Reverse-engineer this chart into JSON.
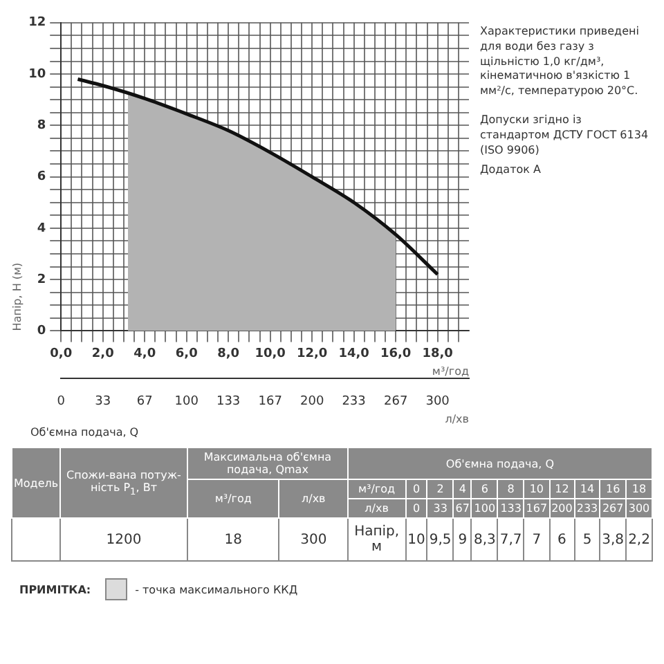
{
  "chart_data": {
    "type": "line",
    "series": [
      {
        "type": "area",
        "color": "#b3b3b3",
        "x": [
          3.2,
          4,
          6,
          8,
          10,
          12,
          14,
          16
        ],
        "values": [
          9.2,
          9.05,
          8.45,
          7.8,
          6.95,
          6.0,
          5.0,
          3.75
        ]
      },
      {
        "color": "#111111",
        "x": [
          0.8,
          2,
          4,
          6,
          8,
          10,
          12,
          14,
          16,
          18
        ],
        "values": [
          9.8,
          9.55,
          9.05,
          8.45,
          7.8,
          6.95,
          6.0,
          5.0,
          3.75,
          2.2
        ]
      }
    ],
    "marker": "none",
    "line_style": "solid",
    "ylabel": "Напір, H (м)",
    "xlabel": "м³/год",
    "x2label": "л/хв",
    "xlim": [
      0,
      19.5
    ],
    "xticks": [
      {
        "value": 0,
        "label": "0,0"
      },
      {
        "value": 0.5,
        "label": null
      },
      {
        "value": 1,
        "label": null
      },
      {
        "value": 1.5,
        "label": null
      },
      {
        "value": 2,
        "label": "2,0"
      },
      {
        "value": 2.5,
        "label": null
      },
      {
        "value": 3,
        "label": null
      },
      {
        "value": 3.5,
        "label": null
      },
      {
        "value": 4,
        "label": "4,0"
      },
      {
        "value": 4.5,
        "label": null
      },
      {
        "value": 5,
        "label": null
      },
      {
        "value": 5.5,
        "label": null
      },
      {
        "value": 6,
        "label": "6,0"
      },
      {
        "value": 6.5,
        "label": null
      },
      {
        "value": 7,
        "label": null
      },
      {
        "value": 7.5,
        "label": null
      },
      {
        "value": 8,
        "label": "8,0"
      },
      {
        "value": 8.5,
        "label": null
      },
      {
        "value": 9,
        "label": null
      },
      {
        "value": 9.5,
        "label": null
      },
      {
        "value": 10,
        "label": "10,0"
      },
      {
        "value": 10.5,
        "label": null
      },
      {
        "value": 11,
        "label": null
      },
      {
        "value": 11.5,
        "label": null
      },
      {
        "value": 12,
        "label": "12,0"
      },
      {
        "value": 12.5,
        "label": null
      },
      {
        "value": 13,
        "label": null
      },
      {
        "value": 13.5,
        "label": null
      },
      {
        "value": 14,
        "label": "14,0"
      },
      {
        "value": 14.5,
        "label": null
      },
      {
        "value": 15,
        "label": null
      },
      {
        "value": 15.5,
        "label": null
      },
      {
        "value": 16,
        "label": "16,0"
      },
      {
        "value": 16.5,
        "label": null
      },
      {
        "value": 17,
        "label": null
      },
      {
        "value": 17.5,
        "label": null
      },
      {
        "value": 18,
        "label": "18,0"
      },
      {
        "value": 18.5,
        "label": null
      },
      {
        "value": 19,
        "label": null
      }
    ],
    "x2lim": [
      0,
      325
    ],
    "x2ticks": [
      0,
      {
        "value": 33.3,
        "label": "33"
      },
      {
        "value": 66.7,
        "label": "67"
      },
      100,
      {
        "value": 133.3,
        "label": "133"
      },
      {
        "value": 166.7,
        "label": "167"
      },
      200,
      {
        "value": 233.3,
        "label": "233"
      },
      {
        "value": 266.7,
        "label": "267"
      },
      300
    ],
    "ylim": [
      0,
      12
    ],
    "yticks": [
      0,
      {
        "value": 0.5,
        "label": null
      },
      {
        "value": 1,
        "label": null
      },
      {
        "value": 1.5,
        "label": null
      },
      2,
      {
        "value": 2.5,
        "label": null
      },
      {
        "value": 3,
        "label": null
      },
      {
        "value": 3.5,
        "label": null
      },
      4,
      {
        "value": 4.5,
        "label": null
      },
      {
        "value": 5,
        "label": null
      },
      {
        "value": 5.5,
        "label": null
      },
      6,
      {
        "value": 6.5,
        "label": null
      },
      {
        "value": 7,
        "label": null
      },
      {
        "value": 7.5,
        "label": null
      },
      8,
      {
        "value": 8.5,
        "label": null
      },
      {
        "value": 9,
        "label": null
      },
      {
        "value": 9.5,
        "label": null
      },
      10,
      {
        "value": 10.5,
        "label": null
      },
      {
        "value": 11,
        "label": null
      },
      {
        "value": 11.5,
        "label": null
      },
      12
    ],
    "grid": true,
    "annotations": [
      "Характеристики приведені для води без газу з щільністю 1,0 кг/дм³, кінематичною в'язкістю 1 мм²/с, температурою 20°С.",
      "Допуски згідно із стандартом ДСТУ ГОСТ 6134 (ISO 9906)",
      "Додаток А",
      "Об'ємна подача, Q",
      "Модель",
      "Спожи-вана потуж-ність P$_{1}$, Вт",
      "Максимальна об'ємна подача, Qmax",
      "м³/год",
      "л/хв",
      "Об'ємна подача, Q",
      "м³/год",
      "л/хв",
      "Напір, м",
      "1200",
      "18",
      "300",
      "ПРИМІТКА:",
      "- точка максимального ККД",
      "0",
      "2",
      "4",
      "6",
      "8",
      "10",
      "12",
      "14",
      "16",
      "18",
      "0",
      "33",
      "67",
      "100",
      "133",
      "167",
      "200",
      "233",
      "267",
      "300",
      "10",
      "9,5",
      "9",
      "8,3",
      "7,7",
      "7",
      "6",
      "5",
      "3,8",
      "2,2"
    ]
  }
}
